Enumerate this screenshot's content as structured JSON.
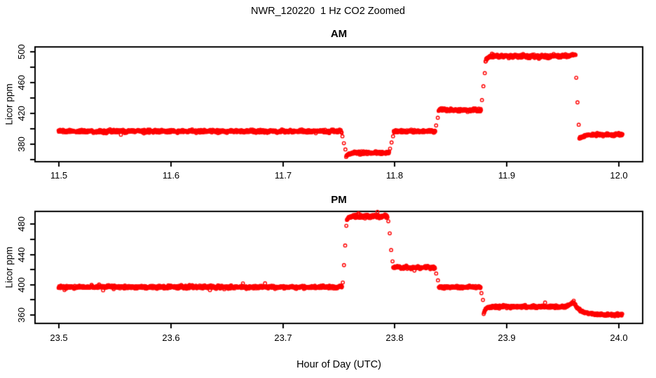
{
  "chart": {
    "title": "NWR_120220  1 Hz CO2 Zoomed",
    "xlabel": "Hour of Day (UTC)",
    "point_color": "#ff0000",
    "axis_color": "#000000",
    "background": "#ffffff",
    "marker": "open-circle"
  },
  "chart_data": [
    {
      "type": "scatter",
      "panel": "AM",
      "title": "AM",
      "ylabel": "Licor ppm",
      "sample_rate_hz": 1,
      "xlim": [
        11.479,
        12.021
      ],
      "ylim": [
        357,
        506
      ],
      "xtick_values": [
        11.5,
        11.6,
        11.7,
        11.8,
        11.9,
        12.0
      ],
      "xtick_labels": [
        "11.5",
        "11.6",
        "11.7",
        "11.8",
        "11.9",
        "12.0"
      ],
      "ytick_values": [
        380,
        420,
        460,
        500
      ],
      "ytick_labels": [
        "380",
        "420",
        "460",
        "500"
      ],
      "yticks_minor": [
        360,
        400,
        440,
        480
      ],
      "legend": "none",
      "grid": false,
      "segments": [
        {
          "kind": "flat",
          "t0": 11.5,
          "t1": 11.7525,
          "level": 396.5,
          "noise": 0.9
        },
        {
          "kind": "steps",
          "t0": 11.7525,
          "t1": 11.7565,
          "values": [
            390,
            381,
            373
          ]
        },
        {
          "kind": "settle",
          "t0": 11.7565,
          "t1": 11.764,
          "from": 364,
          "to": 368.5
        },
        {
          "kind": "flat",
          "t0": 11.764,
          "t1": 11.795,
          "level": 368.5,
          "noise": 0.9
        },
        {
          "kind": "steps",
          "t0": 11.795,
          "t1": 11.799,
          "values": [
            374,
            382,
            390
          ]
        },
        {
          "kind": "flat",
          "t0": 11.799,
          "t1": 11.836,
          "level": 396.5,
          "noise": 0.9
        },
        {
          "kind": "steps",
          "t0": 11.836,
          "t1": 11.839,
          "values": [
            404,
            414
          ]
        },
        {
          "kind": "flat",
          "t0": 11.839,
          "t1": 11.877,
          "level": 424,
          "noise": 0.9
        },
        {
          "kind": "steps",
          "t0": 11.877,
          "t1": 11.8808,
          "values": [
            437,
            455,
            472
          ]
        },
        {
          "kind": "settle",
          "t0": 11.8808,
          "t1": 11.886,
          "from": 488,
          "to": 494
        },
        {
          "kind": "flat",
          "t0": 11.886,
          "t1": 11.955,
          "level": 494,
          "noise": 1.1
        },
        {
          "kind": "ramp",
          "t0": 11.955,
          "t1": 11.9612,
          "from": 494,
          "to": 497
        },
        {
          "kind": "steps",
          "t0": 11.9612,
          "t1": 11.9645,
          "values": [
            466,
            434,
            405
          ]
        },
        {
          "kind": "settle",
          "t0": 11.9645,
          "t1": 11.976,
          "from": 387,
          "to": 392
        },
        {
          "kind": "flat",
          "t0": 11.976,
          "t1": 12.003,
          "level": 392,
          "noise": 0.9
        }
      ]
    },
    {
      "type": "scatter",
      "panel": "PM",
      "title": "PM",
      "ylabel": "Licor ppm",
      "sample_rate_hz": 1,
      "xlim": [
        23.479,
        24.021
      ],
      "ylim": [
        349,
        497
      ],
      "xtick_values": [
        23.5,
        23.6,
        23.7,
        23.8,
        23.9,
        24.0
      ],
      "xtick_labels": [
        "23.5",
        "23.6",
        "23.7",
        "23.8",
        "23.9",
        "24.0"
      ],
      "ytick_values": [
        360,
        400,
        440,
        480
      ],
      "ytick_labels": [
        "360",
        "400",
        "440",
        "480"
      ],
      "yticks_minor": [
        380,
        420,
        460
      ],
      "legend": "none",
      "grid": false,
      "segments": [
        {
          "kind": "flat",
          "t0": 23.5,
          "t1": 23.753,
          "level": 397,
          "noise": 0.9
        },
        {
          "kind": "steps",
          "t0": 23.753,
          "t1": 23.7572,
          "values": [
            403,
            426,
            452,
            478
          ]
        },
        {
          "kind": "settle",
          "t0": 23.7572,
          "t1": 23.7625,
          "from": 486,
          "to": 490.5
        },
        {
          "kind": "flat",
          "t0": 23.7625,
          "t1": 23.7935,
          "level": 490.5,
          "noise": 1.1
        },
        {
          "kind": "steps",
          "t0": 23.7935,
          "t1": 23.7985,
          "values": [
            484,
            468,
            446,
            431
          ]
        },
        {
          "kind": "flat",
          "t0": 23.7985,
          "t1": 23.836,
          "level": 423,
          "noise": 0.9
        },
        {
          "kind": "steps",
          "t0": 23.836,
          "t1": 23.8392,
          "values": [
            415,
            406
          ]
        },
        {
          "kind": "flat",
          "t0": 23.8392,
          "t1": 23.8765,
          "level": 397,
          "noise": 0.9
        },
        {
          "kind": "steps",
          "t0": 23.8765,
          "t1": 23.8792,
          "values": [
            389,
            380
          ]
        },
        {
          "kind": "settle",
          "t0": 23.8792,
          "t1": 23.8845,
          "from": 362,
          "to": 371
        },
        {
          "kind": "flat",
          "t0": 23.8845,
          "t1": 23.953,
          "level": 371,
          "noise": 0.9
        },
        {
          "kind": "ramp",
          "t0": 23.953,
          "t1": 23.959,
          "from": 371,
          "to": 377
        },
        {
          "kind": "steps",
          "t0": 23.959,
          "t1": 23.96,
          "values": [
            379
          ]
        },
        {
          "kind": "settle",
          "t0": 23.96,
          "t1": 23.978,
          "from": 375,
          "to": 360.5
        },
        {
          "kind": "flat",
          "t0": 23.978,
          "t1": 24.003,
          "level": 360.5,
          "noise": 0.8
        }
      ]
    }
  ]
}
